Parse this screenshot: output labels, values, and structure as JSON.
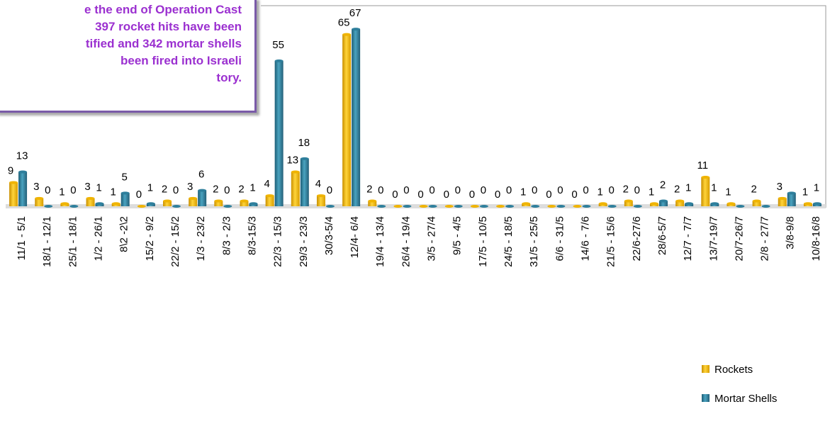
{
  "chart_data": {
    "type": "bar",
    "annotation": [
      "e the end of Operation Cast",
      "397 rocket hits have been",
      "tified and 342 mortar shells",
      "been    fired    into    Israeli",
      "tory."
    ],
    "categories": [
      "11/1 - 5/1",
      "18/1 - 12/1",
      "25/1 - 18/1",
      "1/2 - 26/1",
      "8\\2 -2\\2",
      "15/2 - 9/2",
      "22/2 - 15/2",
      "1/3 - 23/2",
      "8/3 - 2/3",
      "8/3-15/3",
      "22/3 - 15/3",
      "29/3 - 23/3",
      "30/3-5/4",
      "12/4- 6/4",
      "19/4 - 13/4",
      "26/4 - 19/4",
      "3/5 - 27/4",
      "9/5 - 4/5",
      "17/5 - 10/5",
      "24/5 - 18/5",
      "31/5 - 25/5",
      "6/6 - 31/5",
      "14/6 - 7/6",
      "21/5 - 15/6",
      "22/6-27/6",
      "28/6-5/7",
      "12/7 - 7/7",
      "13/7-19/7",
      "20/7-26/7",
      "2/8 - 27/7",
      "3/8-9/8",
      "10/8-16/8"
    ],
    "series": [
      {
        "name": "Rockets",
        "color": "#f0b400",
        "values": [
          9,
          3,
          1,
          3,
          1,
          0,
          2,
          3,
          2,
          2,
          4,
          13,
          4,
          65,
          2,
          0,
          0,
          0,
          0,
          0,
          1,
          0,
          0,
          1,
          2,
          1,
          2,
          11,
          1,
          2,
          3,
          1
        ]
      },
      {
        "name": "Mortar Shells",
        "color": "#2e7f9c",
        "values": [
          13,
          0,
          0,
          1,
          5,
          1,
          0,
          6,
          0,
          1,
          55,
          18,
          0,
          67,
          0,
          0,
          0,
          0,
          0,
          0,
          0,
          0,
          0,
          0,
          0,
          2,
          1,
          1,
          0,
          0,
          5,
          1
        ],
        "value_labels": [
          "13",
          "0",
          "0",
          "1",
          "5",
          "1",
          "0",
          "6",
          "0",
          "1",
          "55",
          "18",
          "0",
          "67",
          "0",
          "0",
          "0",
          "0",
          "0",
          "0",
          "0",
          "0",
          "0",
          "0",
          "0",
          "2",
          "1",
          "1",
          null,
          null,
          null,
          "1"
        ]
      }
    ],
    "ylim": [
      0,
      70
    ]
  }
}
